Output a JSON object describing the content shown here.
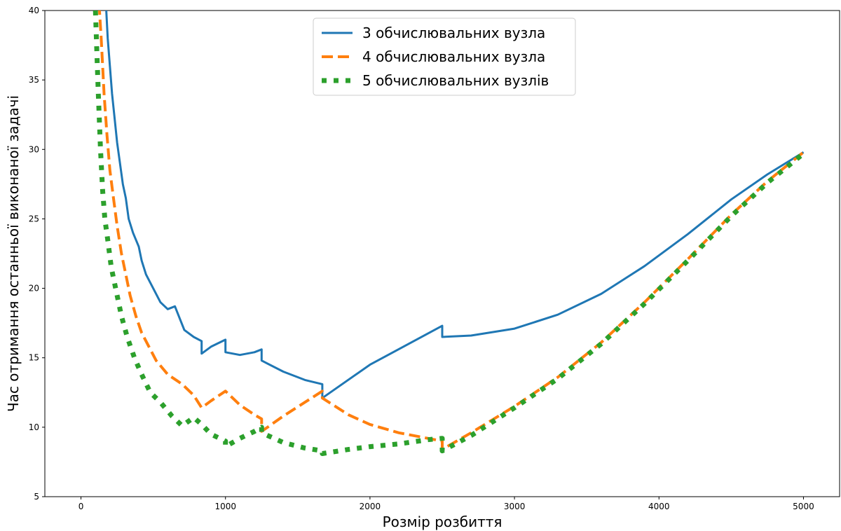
{
  "chart_data": {
    "type": "line",
    "title": "",
    "xlabel": "Розмір розбиття",
    "ylabel": "Час отримання останньої виконаної задачі",
    "xlim": [
      -250,
      5250
    ],
    "ylim": [
      5,
      40
    ],
    "xticks": [
      0,
      1000,
      2000,
      3000,
      4000,
      5000
    ],
    "yticks": [
      5,
      10,
      15,
      20,
      25,
      30,
      35,
      40
    ],
    "xtick_labels": [
      "0",
      "1000",
      "2000",
      "3000",
      "4000",
      "5000"
    ],
    "ytick_labels": [
      "5",
      "10",
      "15",
      "20",
      "25",
      "30",
      "35",
      "40"
    ],
    "grid": false,
    "legend_position": "top-center",
    "series": [
      {
        "name": "3 обчислювальних вузла",
        "color": "#1f77b4",
        "style": "solid",
        "points": [
          [
            170,
            41
          ],
          [
            185,
            38
          ],
          [
            200,
            36
          ],
          [
            215,
            34
          ],
          [
            230,
            32.5
          ],
          [
            250,
            30.5
          ],
          [
            270,
            29
          ],
          [
            290,
            27.5
          ],
          [
            310,
            26.5
          ],
          [
            330,
            25
          ],
          [
            360,
            24
          ],
          [
            400,
            23
          ],
          [
            420,
            22
          ],
          [
            450,
            21
          ],
          [
            500,
            20
          ],
          [
            550,
            19
          ],
          [
            600,
            18.5
          ],
          [
            650,
            18.7
          ],
          [
            715,
            17
          ],
          [
            780,
            16.5
          ],
          [
            835,
            16.2
          ],
          [
            835,
            15.3
          ],
          [
            900,
            15.8
          ],
          [
            1000,
            16.3
          ],
          [
            1000,
            15.4
          ],
          [
            1100,
            15.2
          ],
          [
            1200,
            15.4
          ],
          [
            1250,
            15.6
          ],
          [
            1250,
            14.8
          ],
          [
            1400,
            14.0
          ],
          [
            1550,
            13.4
          ],
          [
            1670,
            13.1
          ],
          [
            1670,
            12.1
          ],
          [
            2000,
            14.5
          ],
          [
            2500,
            17.3
          ],
          [
            2500,
            16.5
          ],
          [
            2700,
            16.6
          ],
          [
            3000,
            17.1
          ],
          [
            3300,
            18.1
          ],
          [
            3600,
            19.6
          ],
          [
            3900,
            21.6
          ],
          [
            4200,
            23.9
          ],
          [
            4500,
            26.4
          ],
          [
            4750,
            28.2
          ],
          [
            5000,
            29.8
          ]
        ]
      },
      {
        "name": "4 обчислювальних вузла",
        "color": "#ff7f0e",
        "style": "dashed",
        "points": [
          [
            125,
            40.5
          ],
          [
            140,
            38
          ],
          [
            160,
            34
          ],
          [
            180,
            31
          ],
          [
            200,
            28.5
          ],
          [
            225,
            26.5
          ],
          [
            250,
            24.5
          ],
          [
            280,
            22.5
          ],
          [
            310,
            21
          ],
          [
            340,
            19.5
          ],
          [
            380,
            18
          ],
          [
            420,
            16.8
          ],
          [
            470,
            15.8
          ],
          [
            520,
            14.8
          ],
          [
            600,
            13.8
          ],
          [
            700,
            13.1
          ],
          [
            780,
            12.3
          ],
          [
            835,
            11.4
          ],
          [
            900,
            11.9
          ],
          [
            1000,
            12.6
          ],
          [
            1100,
            11.6
          ],
          [
            1200,
            10.9
          ],
          [
            1250,
            10.6
          ],
          [
            1250,
            9.7
          ],
          [
            1400,
            10.8
          ],
          [
            1550,
            11.8
          ],
          [
            1670,
            12.6
          ],
          [
            1670,
            12.1
          ],
          [
            1850,
            10.9
          ],
          [
            2000,
            10.2
          ],
          [
            2200,
            9.6
          ],
          [
            2400,
            9.2
          ],
          [
            2500,
            9.0
          ],
          [
            2500,
            8.4
          ],
          [
            2700,
            9.6
          ],
          [
            3000,
            11.5
          ],
          [
            3300,
            13.6
          ],
          [
            3600,
            16.1
          ],
          [
            3900,
            19.0
          ],
          [
            4200,
            22.1
          ],
          [
            4500,
            25.3
          ],
          [
            4750,
            27.7
          ],
          [
            5000,
            29.8
          ]
        ]
      },
      {
        "name": "5 обчислювальних вузлів",
        "color": "#2ca02c",
        "style": "dotted",
        "points": [
          [
            100,
            40
          ],
          [
            110,
            37
          ],
          [
            120,
            34
          ],
          [
            135,
            30
          ],
          [
            150,
            27
          ],
          [
            165,
            25
          ],
          [
            185,
            23.5
          ],
          [
            210,
            21.5
          ],
          [
            240,
            20
          ],
          [
            280,
            18
          ],
          [
            320,
            16.5
          ],
          [
            370,
            15
          ],
          [
            420,
            13.8
          ],
          [
            480,
            12.5
          ],
          [
            550,
            11.8
          ],
          [
            630,
            10.8
          ],
          [
            700,
            10.1
          ],
          [
            780,
            10.7
          ],
          [
            835,
            10.2
          ],
          [
            900,
            9.5
          ],
          [
            1000,
            9.0
          ],
          [
            1000,
            8.6
          ],
          [
            1100,
            9.2
          ],
          [
            1200,
            9.7
          ],
          [
            1250,
            10.0
          ],
          [
            1250,
            9.6
          ],
          [
            1400,
            8.9
          ],
          [
            1550,
            8.5
          ],
          [
            1670,
            8.3
          ],
          [
            1670,
            8.1
          ],
          [
            1850,
            8.4
          ],
          [
            2000,
            8.6
          ],
          [
            2200,
            8.8
          ],
          [
            2400,
            9.1
          ],
          [
            2500,
            9.2
          ],
          [
            2500,
            8.3
          ],
          [
            2700,
            9.4
          ],
          [
            3000,
            11.4
          ],
          [
            3300,
            13.5
          ],
          [
            3600,
            16.0
          ],
          [
            3900,
            18.9
          ],
          [
            4200,
            22.0
          ],
          [
            4500,
            25.2
          ],
          [
            4750,
            27.6
          ],
          [
            5000,
            29.7
          ]
        ]
      }
    ]
  }
}
